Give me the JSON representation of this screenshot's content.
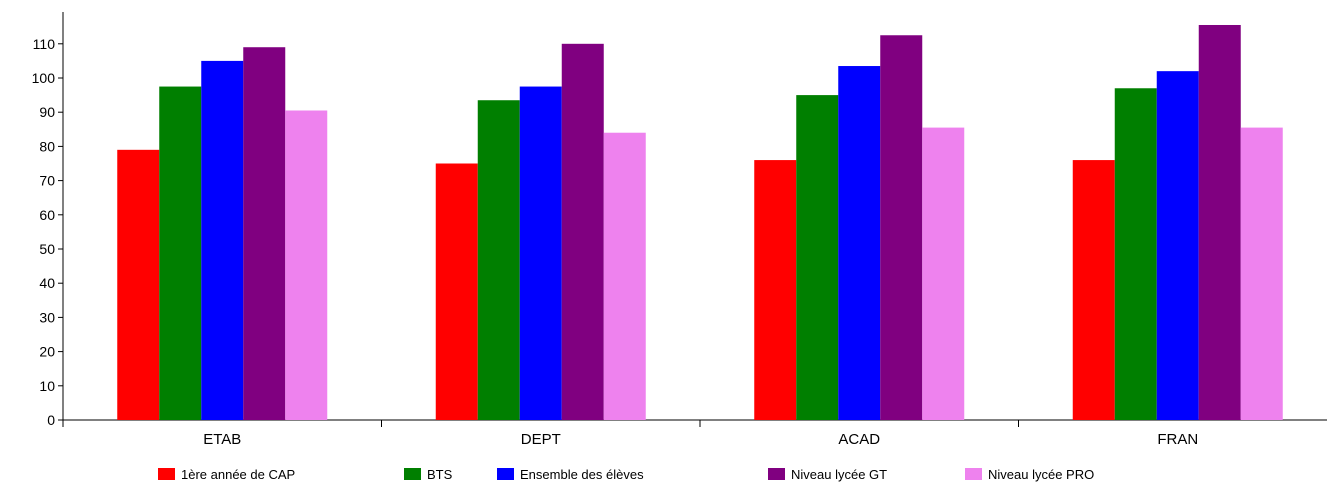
{
  "chart_data": {
    "type": "bar",
    "categories": [
      "ETAB",
      "DEPT",
      "ACAD",
      "FRAN"
    ],
    "series": [
      {
        "name": "1ère année de CAP",
        "color": "#ff0000",
        "values": [
          79,
          75,
          76,
          76
        ]
      },
      {
        "name": "BTS",
        "color": "#007f00",
        "values": [
          97.5,
          93.5,
          95,
          97
        ]
      },
      {
        "name": "Ensemble des élèves",
        "color": "#0000ff",
        "values": [
          105,
          97.5,
          103.5,
          102
        ]
      },
      {
        "name": "Niveau lycée GT",
        "color": "#800080",
        "values": [
          109,
          110,
          112.5,
          115.5
        ]
      },
      {
        "name": "Niveau lycée PRO",
        "color": "#ee82ee",
        "values": [
          90.5,
          84,
          85.5,
          85.5
        ]
      }
    ],
    "yticks": [
      0,
      10,
      20,
      30,
      40,
      50,
      60,
      70,
      80,
      90,
      100,
      110
    ],
    "ylim": [
      0,
      118
    ],
    "grid": false,
    "legend": "bottom"
  }
}
